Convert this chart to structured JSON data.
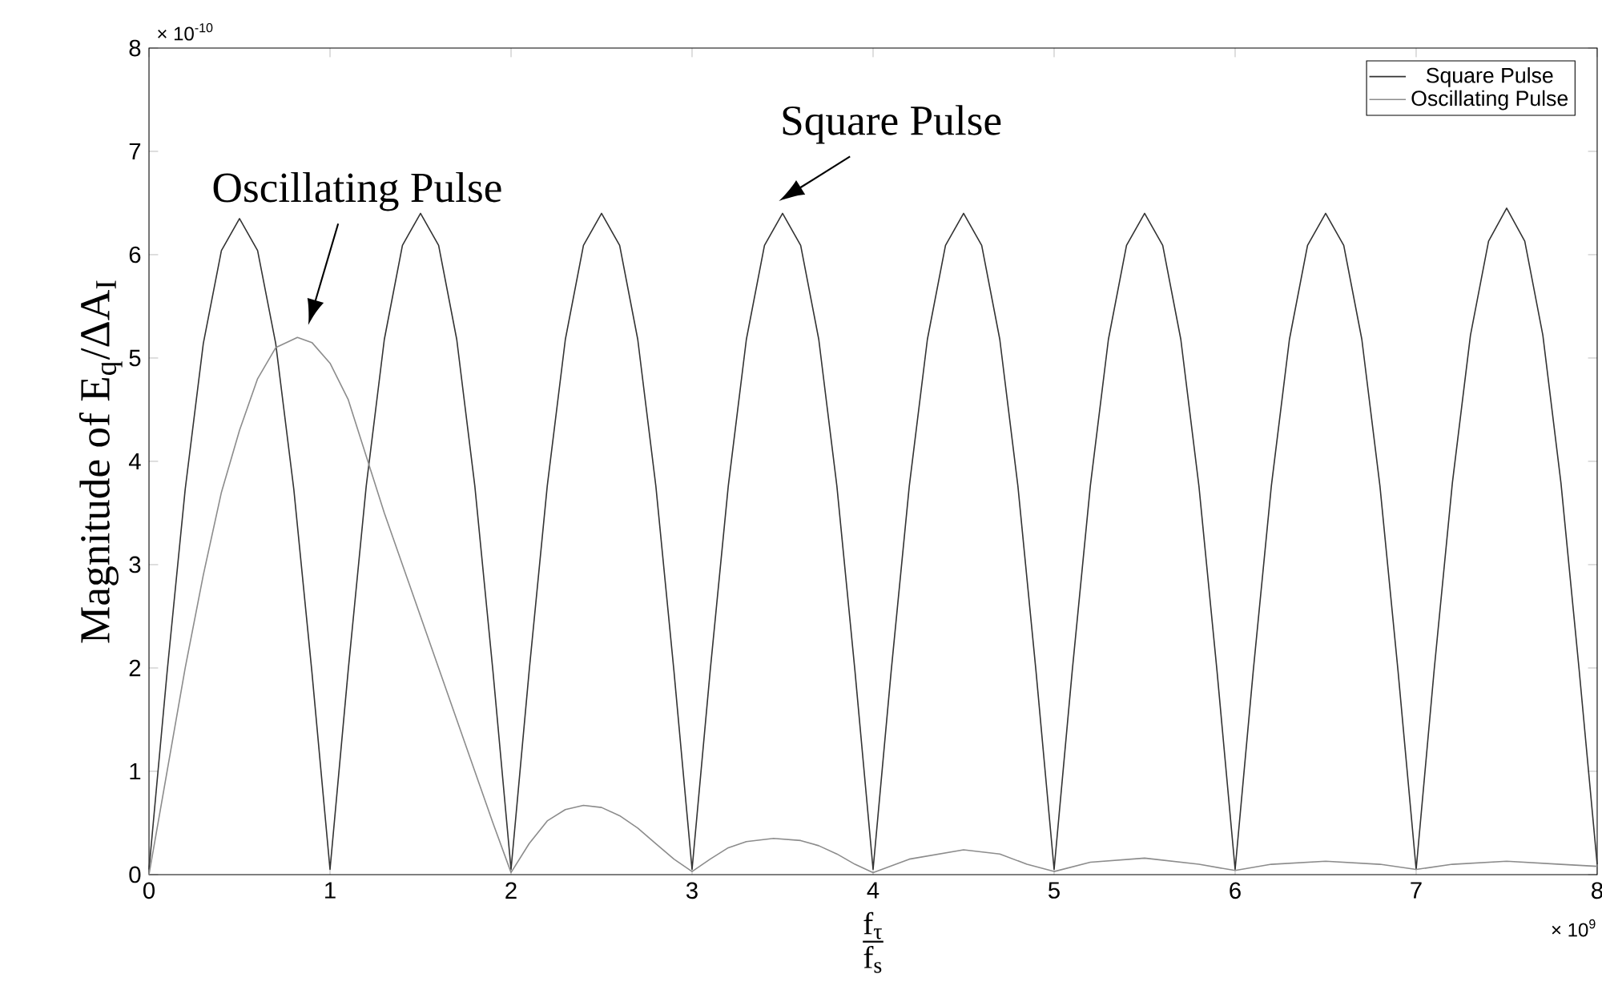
{
  "chart_data": {
    "type": "line",
    "xlabel": "\\frac{\\text{f}_{\\text{τ}}}{\\text{f}_{\\text{s}}}",
    "ylabel": "Magnitude of E$_{q}$/ΔA$_{I}$",
    "xlim": [
      0,
      8
    ],
    "ylim": [
      0,
      8
    ],
    "xticks": [
      0,
      1,
      2,
      3,
      4,
      5,
      6,
      7,
      8
    ],
    "yticks": [
      0,
      1,
      2,
      3,
      4,
      5,
      6,
      7,
      8
    ],
    "legend": "top right",
    "annotations": [
      {
        "text": "Oscillating Pulse",
        "x": 0.85,
        "y": 5.2
      },
      {
        "text": "Square Pulse",
        "x": 3.45,
        "y": 6.4
      },
      "× 10$^{-10}$",
      "× 10$^{9}$"
    ],
    "series": [
      {
        "name": "Square Pulse",
        "color": "#333333",
        "x": [
          0,
          0.1,
          0.2,
          0.3,
          0.4,
          0.5,
          0.6,
          0.7,
          0.8,
          0.9,
          1,
          1.1,
          1.2,
          1.3,
          1.4,
          1.5,
          1.6,
          1.7,
          1.8,
          1.9,
          2,
          2.1,
          2.2,
          2.3,
          2.4,
          2.5,
          2.6,
          2.7,
          2.8,
          2.9,
          3,
          3.1,
          3.2,
          3.3,
          3.4,
          3.5,
          3.6,
          3.7,
          3.8,
          3.9,
          4,
          4.1,
          4.2,
          4.3,
          4.4,
          4.5,
          4.6,
          4.7,
          4.8,
          4.9,
          5,
          5.1,
          5.2,
          5.3,
          5.4,
          5.5,
          5.6,
          5.7,
          5.8,
          5.9,
          6,
          6.1,
          6.2,
          6.3,
          6.4,
          6.5,
          6.6,
          6.7,
          6.8,
          6.9,
          7,
          7.1,
          7.2,
          7.3,
          7.4,
          7.5,
          7.6,
          7.7,
          7.8,
          7.9,
          8
        ],
        "values": [
          0.05,
          1.96,
          3.73,
          5.14,
          6.04,
          6.35,
          6.04,
          5.14,
          3.73,
          1.96,
          0.05,
          1.97,
          3.76,
          5.18,
          6.09,
          6.4,
          6.09,
          5.18,
          3.76,
          1.97,
          0.05,
          1.97,
          3.76,
          5.18,
          6.09,
          6.4,
          6.09,
          5.18,
          3.76,
          1.97,
          0.05,
          1.97,
          3.76,
          5.18,
          6.09,
          6.4,
          6.09,
          5.18,
          3.76,
          1.97,
          0.05,
          1.97,
          3.76,
          5.18,
          6.09,
          6.4,
          6.09,
          5.18,
          3.76,
          1.97,
          0.05,
          1.97,
          3.76,
          5.18,
          6.09,
          6.4,
          6.09,
          5.18,
          3.76,
          1.97,
          0.05,
          1.97,
          3.76,
          5.18,
          6.09,
          6.4,
          6.09,
          5.18,
          3.76,
          1.97,
          0.05,
          1.99,
          3.79,
          5.22,
          6.13,
          6.45,
          6.13,
          5.22,
          3.79,
          1.99,
          0.1
        ]
      },
      {
        "name": "Oscillating Pulse",
        "color": "#8c8c8c",
        "x": [
          0,
          0.1,
          0.2,
          0.3,
          0.4,
          0.5,
          0.6,
          0.7,
          0.82,
          0.9,
          1,
          1.1,
          1.2,
          1.3,
          1.4,
          1.5,
          1.6,
          1.7,
          1.8,
          1.9,
          2,
          2.1,
          2.2,
          2.3,
          2.4,
          2.5,
          2.6,
          2.7,
          2.8,
          2.9,
          3,
          3.1,
          3.2,
          3.3,
          3.45,
          3.6,
          3.7,
          3.8,
          3.9,
          4,
          4.2,
          4.5,
          4.7,
          4.85,
          5,
          5.2,
          5.5,
          5.8,
          6,
          6.2,
          6.5,
          6.8,
          7,
          7.2,
          7.5,
          7.8,
          8
        ],
        "values": [
          0,
          1.0,
          2.0,
          2.9,
          3.7,
          4.3,
          4.8,
          5.1,
          5.2,
          5.15,
          4.95,
          4.6,
          4.05,
          3.5,
          3.0,
          2.5,
          2.0,
          1.5,
          1.0,
          0.5,
          0.02,
          0.3,
          0.52,
          0.63,
          0.67,
          0.65,
          0.57,
          0.45,
          0.3,
          0.15,
          0.03,
          0.15,
          0.26,
          0.32,
          0.35,
          0.33,
          0.28,
          0.2,
          0.1,
          0.02,
          0.15,
          0.24,
          0.2,
          0.1,
          0.03,
          0.12,
          0.16,
          0.1,
          0.04,
          0.1,
          0.13,
          0.1,
          0.05,
          0.1,
          0.13,
          0.1,
          0.08
        ]
      }
    ]
  }
}
